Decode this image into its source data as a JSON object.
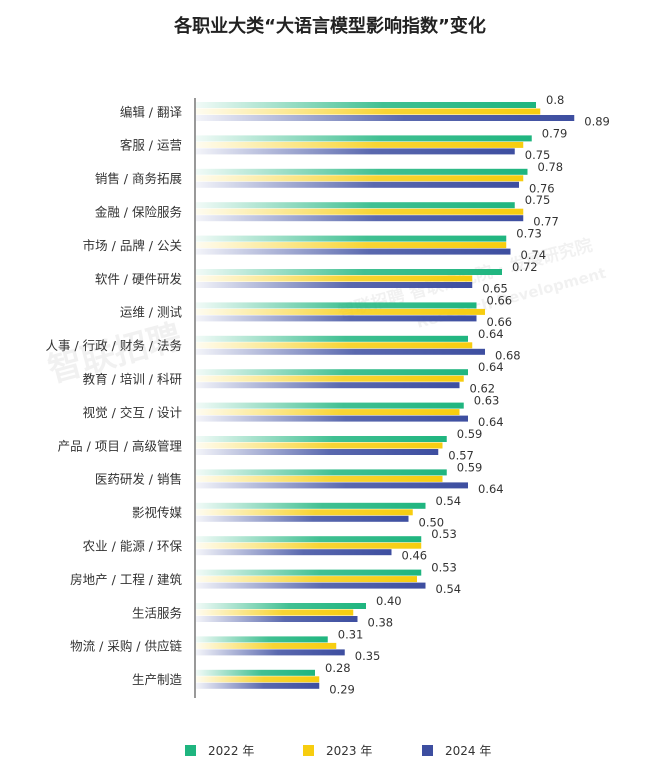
{
  "chart_data": {
    "type": "bar",
    "orientation": "horizontal",
    "title": "各职业大类“大语言模型影响指数”变化",
    "categories": [
      "编辑 / 翻译",
      "客服 / 运营",
      "销售 / 商务拓展",
      "金融 / 保险服务",
      "市场 / 品牌 / 公关",
      "软件 / 硬件研发",
      "运维 / 测试",
      "人事 / 行政 / 财务 / 法务",
      "教育 / 培训 / 科研",
      "视觉 / 交互 / 设计",
      "产品 / 项目 / 高级管理",
      "医药研发 / 销售",
      "影视传媒",
      "农业 / 能源 / 环保",
      "房地产 / 工程 / 建筑",
      "生活服务",
      "物流 / 采购 / 供应链",
      "生产制造"
    ],
    "series": [
      {
        "name": "2022 年",
        "values": [
          0.8,
          0.79,
          0.78,
          0.75,
          0.73,
          0.72,
          0.66,
          0.64,
          0.64,
          0.63,
          0.59,
          0.59,
          0.54,
          0.53,
          0.53,
          0.4,
          0.31,
          0.28
        ],
        "labels": [
          "0.8",
          "0.79",
          "0.78",
          "0.75",
          "0.73",
          "0.72",
          "0.66",
          "0.64",
          "0.64",
          "0.63",
          "0.59",
          "0.59",
          "0.54",
          "0.53",
          "0.53",
          "0.40",
          "0.31",
          "0.28"
        ]
      },
      {
        "name": "2023 年",
        "values": [
          0.81,
          0.77,
          0.77,
          0.77,
          0.73,
          0.65,
          0.68,
          0.65,
          0.63,
          0.62,
          0.58,
          0.58,
          0.51,
          0.53,
          0.52,
          0.37,
          0.33,
          0.29
        ],
        "labels": []
      },
      {
        "name": "2024 年",
        "values": [
          0.89,
          0.75,
          0.76,
          0.77,
          0.74,
          0.65,
          0.66,
          0.68,
          0.62,
          0.64,
          0.57,
          0.64,
          0.5,
          0.46,
          0.54,
          0.38,
          0.35,
          0.29
        ],
        "labels": [
          "0.89",
          "0.75",
          "0.76",
          "0.77",
          "0.74",
          "0.65",
          "0.66",
          "0.68",
          "0.62",
          "0.64",
          "0.57",
          "0.64",
          "0.50",
          "0.46",
          "0.54",
          "0.38",
          "0.35",
          "0.29"
        ]
      }
    ],
    "legend_position": "bottom",
    "grid": false
  },
  "colors": {
    "s2022": "#1fb57f",
    "s2023": "#f7cd0f",
    "s2024": "#3d4ea0",
    "axis": "#555555"
  },
  "watermarks": [
    "智联招聘",
    "智联招聘 智联研究院 · 发展研究院",
    "Research Development"
  ]
}
